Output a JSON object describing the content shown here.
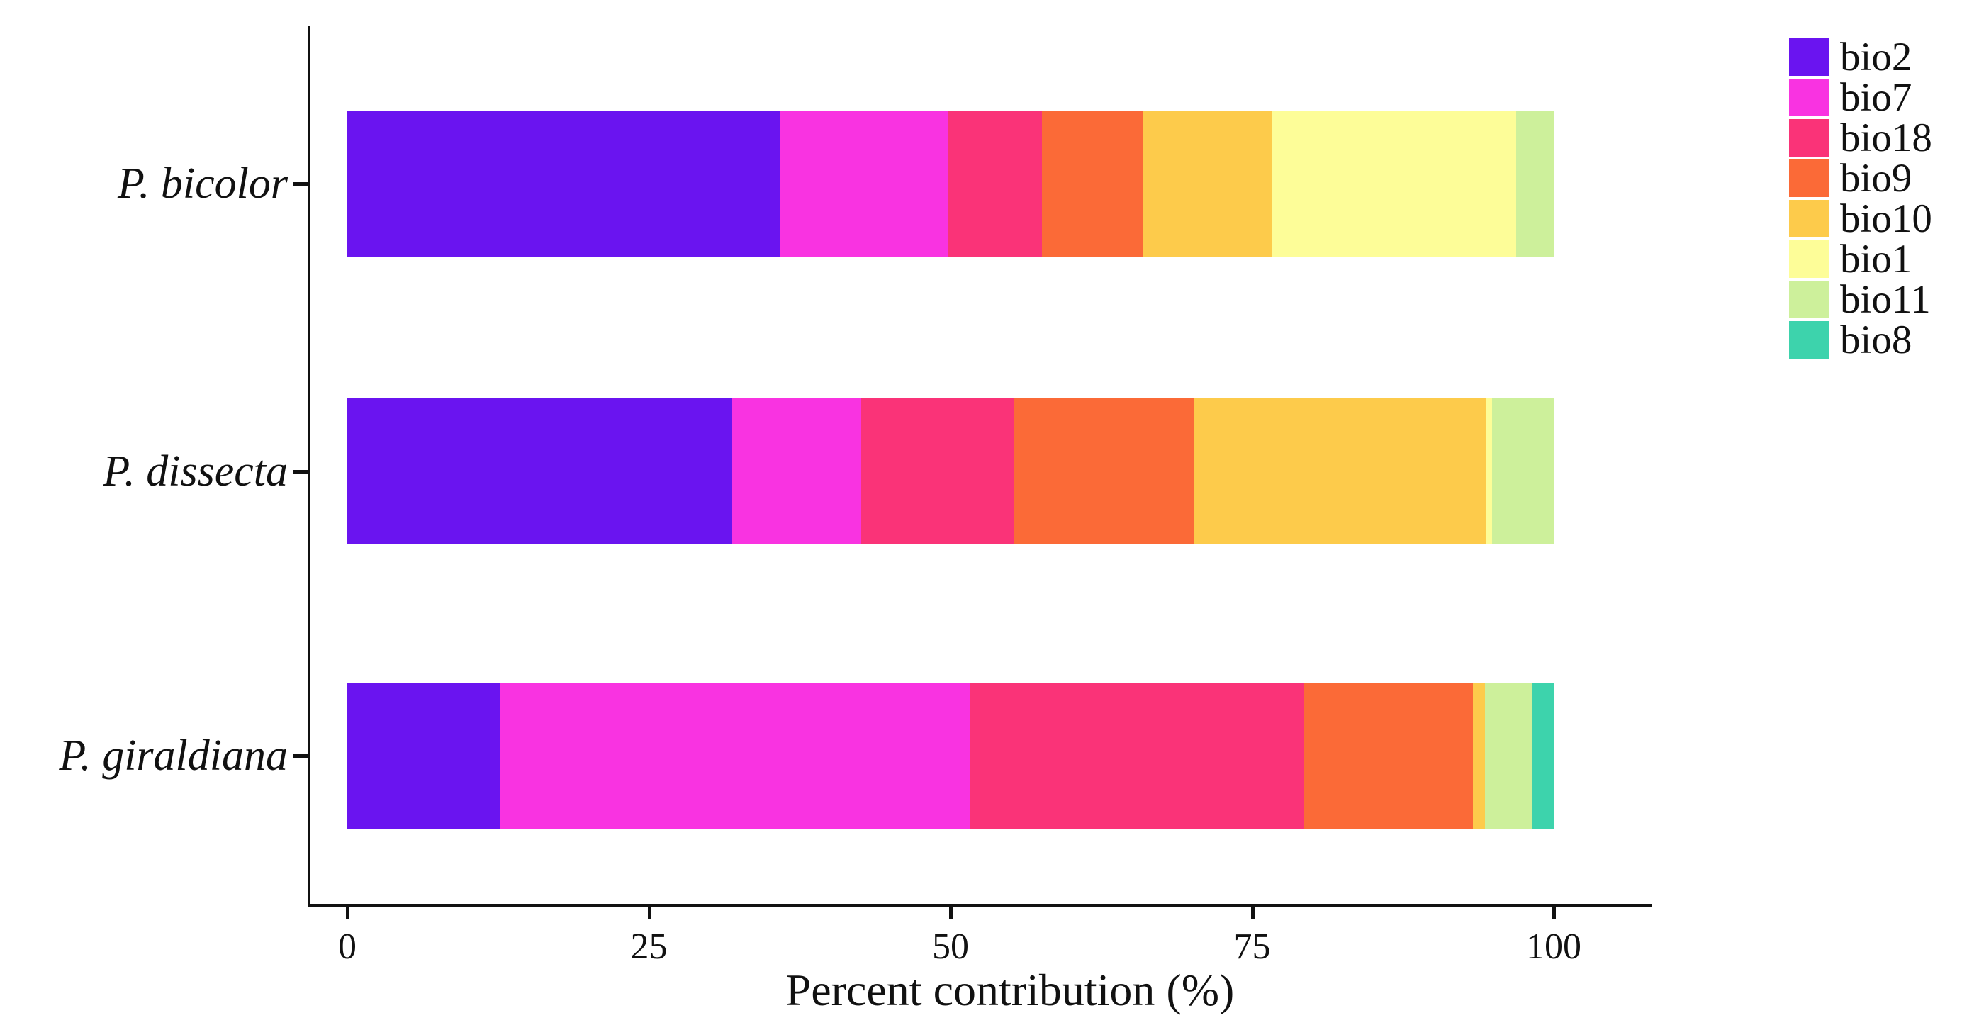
{
  "chart_data": {
    "type": "bar",
    "orientation": "horizontal",
    "stacked": true,
    "title": "",
    "xlabel": "Percent contribution (%)",
    "ylabel": "",
    "xlim": [
      0,
      100
    ],
    "x_ticks": [
      0,
      25,
      50,
      75,
      100
    ],
    "grid": false,
    "legend_position": "top-right",
    "categories": [
      "P. bicolor",
      "P. dissecta",
      "P. giraldiana"
    ],
    "series": [
      {
        "name": "bio2",
        "color": "#6A14F0",
        "values": [
          35.9,
          31.9,
          12.7
        ]
      },
      {
        "name": "bio7",
        "color": "#F933E1",
        "values": [
          13.9,
          10.7,
          38.9
        ]
      },
      {
        "name": "bio18",
        "color": "#FA3378",
        "values": [
          7.8,
          12.7,
          27.7
        ]
      },
      {
        "name": "bio9",
        "color": "#FB6A37",
        "values": [
          8.4,
          14.9,
          14.0
        ]
      },
      {
        "name": "bio10",
        "color": "#FDCB4B",
        "values": [
          10.7,
          24.2,
          1.0
        ]
      },
      {
        "name": "bio1",
        "color": "#FDFD98",
        "values": [
          20.2,
          0.5,
          0
        ]
      },
      {
        "name": "bio11",
        "color": "#CDF09B",
        "values": [
          3.1,
          5.1,
          3.9
        ]
      },
      {
        "name": "bio8",
        "color": "#3DD3AC",
        "values": [
          0,
          0,
          1.8
        ]
      }
    ],
    "axis_color": "#111111"
  }
}
